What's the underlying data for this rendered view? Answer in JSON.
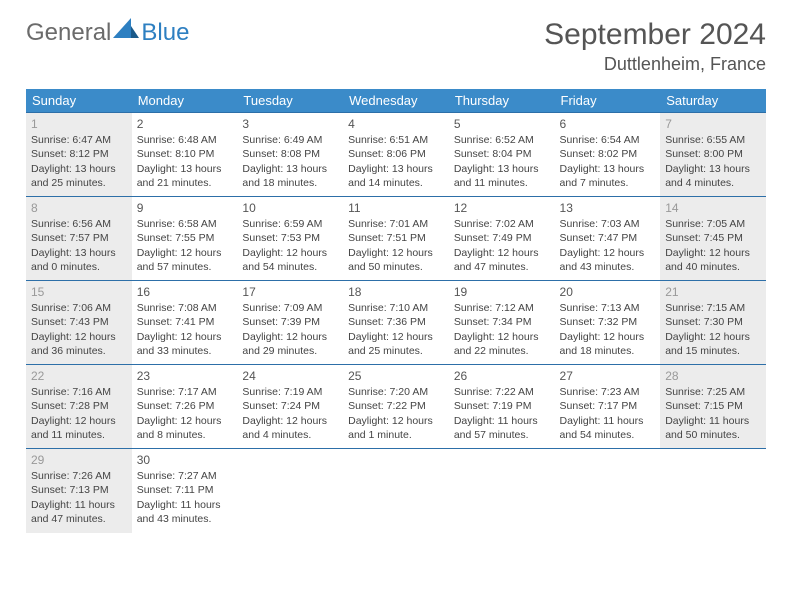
{
  "logo": {
    "word1": "General",
    "word2": "Blue"
  },
  "header": {
    "title": "September 2024",
    "location": "Duttlenheim, France"
  },
  "colors": {
    "header_bg": "#3b8bc9",
    "row_border": "#2d6fa8",
    "logo_gray": "#6b6b6b",
    "logo_blue": "#2d7fc1",
    "inactive_bg": "#ececec"
  },
  "weekdays": [
    "Sunday",
    "Monday",
    "Tuesday",
    "Wednesday",
    "Thursday",
    "Friday",
    "Saturday"
  ],
  "weeks": [
    [
      {
        "day": "1",
        "inactive": true,
        "sunrise": "Sunrise: 6:47 AM",
        "sunset": "Sunset: 8:12 PM",
        "dl1": "Daylight: 13 hours",
        "dl2": "and 25 minutes."
      },
      {
        "day": "2",
        "sunrise": "Sunrise: 6:48 AM",
        "sunset": "Sunset: 8:10 PM",
        "dl1": "Daylight: 13 hours",
        "dl2": "and 21 minutes."
      },
      {
        "day": "3",
        "sunrise": "Sunrise: 6:49 AM",
        "sunset": "Sunset: 8:08 PM",
        "dl1": "Daylight: 13 hours",
        "dl2": "and 18 minutes."
      },
      {
        "day": "4",
        "sunrise": "Sunrise: 6:51 AM",
        "sunset": "Sunset: 8:06 PM",
        "dl1": "Daylight: 13 hours",
        "dl2": "and 14 minutes."
      },
      {
        "day": "5",
        "sunrise": "Sunrise: 6:52 AM",
        "sunset": "Sunset: 8:04 PM",
        "dl1": "Daylight: 13 hours",
        "dl2": "and 11 minutes."
      },
      {
        "day": "6",
        "sunrise": "Sunrise: 6:54 AM",
        "sunset": "Sunset: 8:02 PM",
        "dl1": "Daylight: 13 hours",
        "dl2": "and 7 minutes."
      },
      {
        "day": "7",
        "inactive": true,
        "sunrise": "Sunrise: 6:55 AM",
        "sunset": "Sunset: 8:00 PM",
        "dl1": "Daylight: 13 hours",
        "dl2": "and 4 minutes."
      }
    ],
    [
      {
        "day": "8",
        "inactive": true,
        "sunrise": "Sunrise: 6:56 AM",
        "sunset": "Sunset: 7:57 PM",
        "dl1": "Daylight: 13 hours",
        "dl2": "and 0 minutes."
      },
      {
        "day": "9",
        "sunrise": "Sunrise: 6:58 AM",
        "sunset": "Sunset: 7:55 PM",
        "dl1": "Daylight: 12 hours",
        "dl2": "and 57 minutes."
      },
      {
        "day": "10",
        "sunrise": "Sunrise: 6:59 AM",
        "sunset": "Sunset: 7:53 PM",
        "dl1": "Daylight: 12 hours",
        "dl2": "and 54 minutes."
      },
      {
        "day": "11",
        "sunrise": "Sunrise: 7:01 AM",
        "sunset": "Sunset: 7:51 PM",
        "dl1": "Daylight: 12 hours",
        "dl2": "and 50 minutes."
      },
      {
        "day": "12",
        "sunrise": "Sunrise: 7:02 AM",
        "sunset": "Sunset: 7:49 PM",
        "dl1": "Daylight: 12 hours",
        "dl2": "and 47 minutes."
      },
      {
        "day": "13",
        "sunrise": "Sunrise: 7:03 AM",
        "sunset": "Sunset: 7:47 PM",
        "dl1": "Daylight: 12 hours",
        "dl2": "and 43 minutes."
      },
      {
        "day": "14",
        "inactive": true,
        "sunrise": "Sunrise: 7:05 AM",
        "sunset": "Sunset: 7:45 PM",
        "dl1": "Daylight: 12 hours",
        "dl2": "and 40 minutes."
      }
    ],
    [
      {
        "day": "15",
        "inactive": true,
        "sunrise": "Sunrise: 7:06 AM",
        "sunset": "Sunset: 7:43 PM",
        "dl1": "Daylight: 12 hours",
        "dl2": "and 36 minutes."
      },
      {
        "day": "16",
        "sunrise": "Sunrise: 7:08 AM",
        "sunset": "Sunset: 7:41 PM",
        "dl1": "Daylight: 12 hours",
        "dl2": "and 33 minutes."
      },
      {
        "day": "17",
        "sunrise": "Sunrise: 7:09 AM",
        "sunset": "Sunset: 7:39 PM",
        "dl1": "Daylight: 12 hours",
        "dl2": "and 29 minutes."
      },
      {
        "day": "18",
        "sunrise": "Sunrise: 7:10 AM",
        "sunset": "Sunset: 7:36 PM",
        "dl1": "Daylight: 12 hours",
        "dl2": "and 25 minutes."
      },
      {
        "day": "19",
        "sunrise": "Sunrise: 7:12 AM",
        "sunset": "Sunset: 7:34 PM",
        "dl1": "Daylight: 12 hours",
        "dl2": "and 22 minutes."
      },
      {
        "day": "20",
        "sunrise": "Sunrise: 7:13 AM",
        "sunset": "Sunset: 7:32 PM",
        "dl1": "Daylight: 12 hours",
        "dl2": "and 18 minutes."
      },
      {
        "day": "21",
        "inactive": true,
        "sunrise": "Sunrise: 7:15 AM",
        "sunset": "Sunset: 7:30 PM",
        "dl1": "Daylight: 12 hours",
        "dl2": "and 15 minutes."
      }
    ],
    [
      {
        "day": "22",
        "inactive": true,
        "sunrise": "Sunrise: 7:16 AM",
        "sunset": "Sunset: 7:28 PM",
        "dl1": "Daylight: 12 hours",
        "dl2": "and 11 minutes."
      },
      {
        "day": "23",
        "sunrise": "Sunrise: 7:17 AM",
        "sunset": "Sunset: 7:26 PM",
        "dl1": "Daylight: 12 hours",
        "dl2": "and 8 minutes."
      },
      {
        "day": "24",
        "sunrise": "Sunrise: 7:19 AM",
        "sunset": "Sunset: 7:24 PM",
        "dl1": "Daylight: 12 hours",
        "dl2": "and 4 minutes."
      },
      {
        "day": "25",
        "sunrise": "Sunrise: 7:20 AM",
        "sunset": "Sunset: 7:22 PM",
        "dl1": "Daylight: 12 hours",
        "dl2": "and 1 minute."
      },
      {
        "day": "26",
        "sunrise": "Sunrise: 7:22 AM",
        "sunset": "Sunset: 7:19 PM",
        "dl1": "Daylight: 11 hours",
        "dl2": "and 57 minutes."
      },
      {
        "day": "27",
        "sunrise": "Sunrise: 7:23 AM",
        "sunset": "Sunset: 7:17 PM",
        "dl1": "Daylight: 11 hours",
        "dl2": "and 54 minutes."
      },
      {
        "day": "28",
        "inactive": true,
        "sunrise": "Sunrise: 7:25 AM",
        "sunset": "Sunset: 7:15 PM",
        "dl1": "Daylight: 11 hours",
        "dl2": "and 50 minutes."
      }
    ],
    [
      {
        "day": "29",
        "inactive": true,
        "sunrise": "Sunrise: 7:26 AM",
        "sunset": "Sunset: 7:13 PM",
        "dl1": "Daylight: 11 hours",
        "dl2": "and 47 minutes."
      },
      {
        "day": "30",
        "sunrise": "Sunrise: 7:27 AM",
        "sunset": "Sunset: 7:11 PM",
        "dl1": "Daylight: 11 hours",
        "dl2": "and 43 minutes."
      },
      {
        "empty": true
      },
      {
        "empty": true
      },
      {
        "empty": true
      },
      {
        "empty": true
      },
      {
        "empty": true
      }
    ]
  ]
}
